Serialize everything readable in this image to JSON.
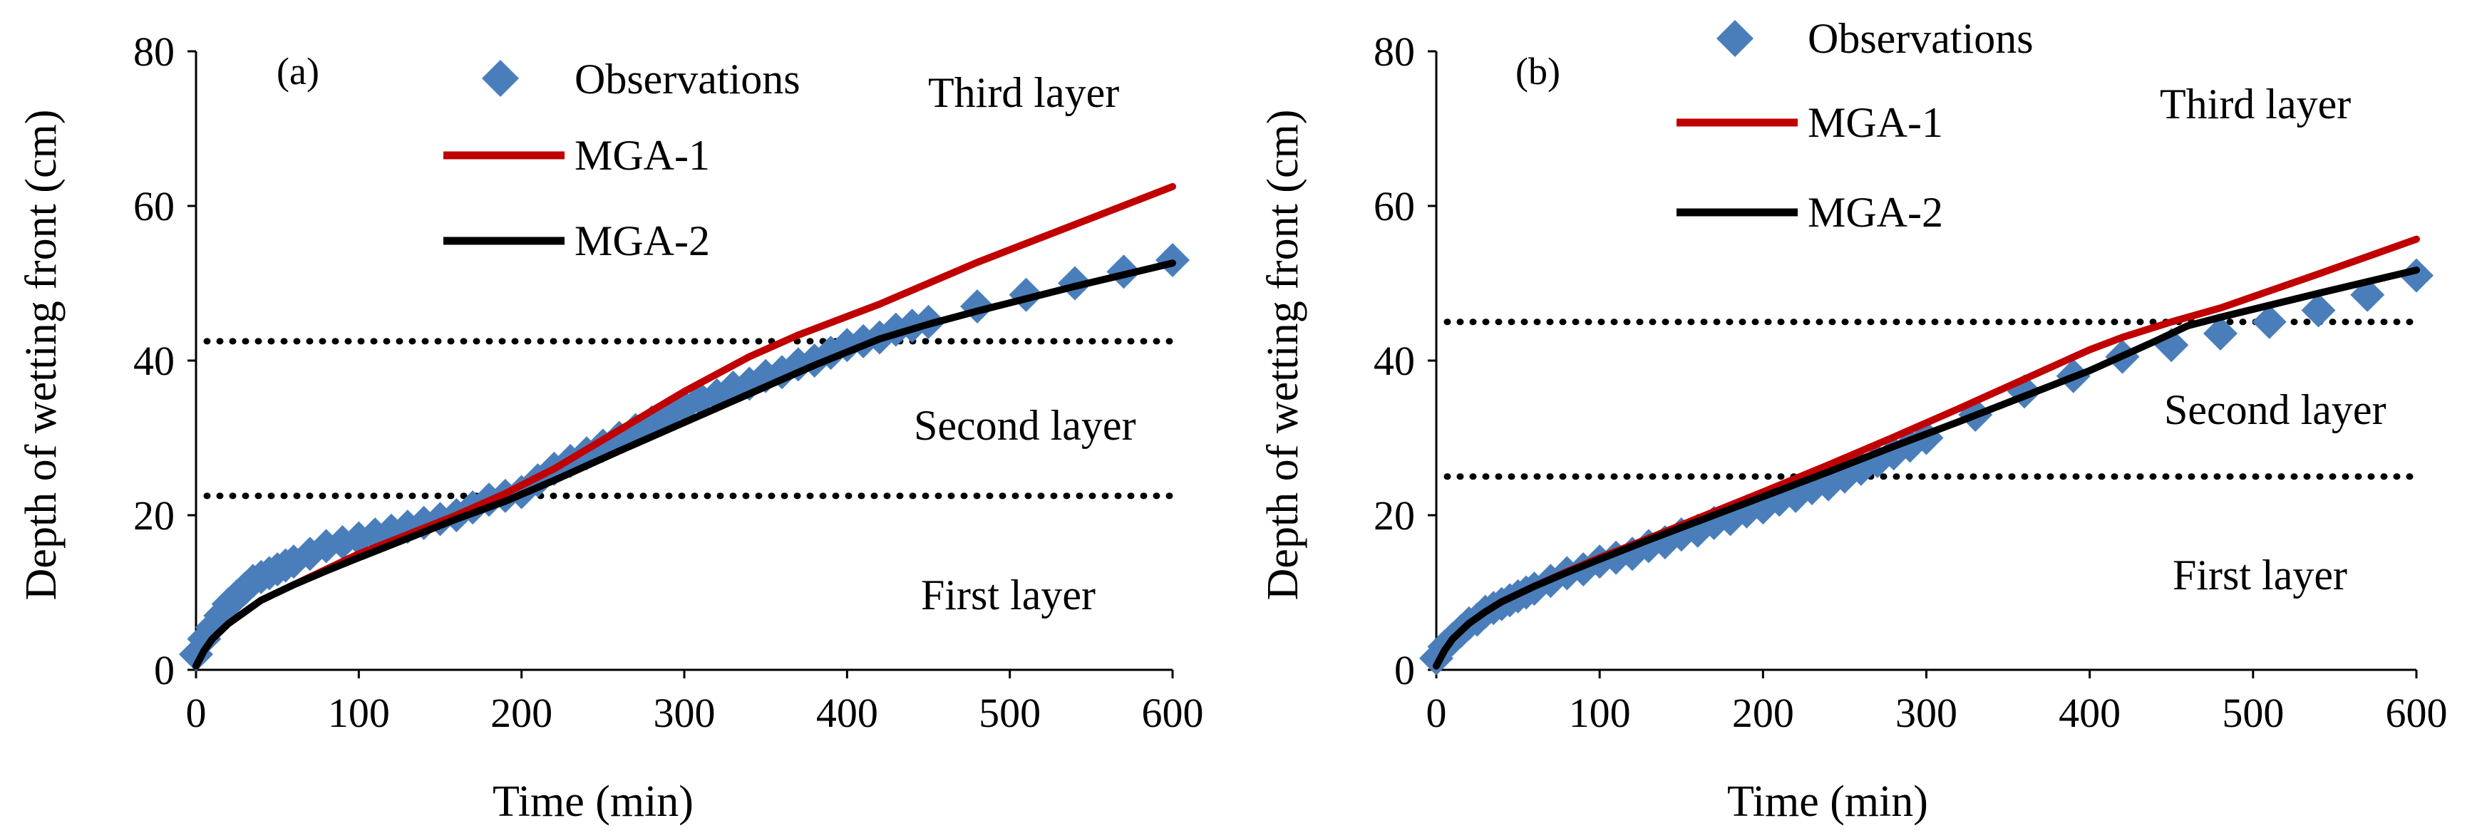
{
  "chart_data": [
    {
      "type": "line",
      "panel_label": "(a)",
      "xlabel": "Time (min)",
      "ylabel": "Depth of wetting front (cm)",
      "xlim": [
        0,
        600
      ],
      "ylim": [
        0,
        80
      ],
      "xticks": [
        0,
        100,
        200,
        300,
        400,
        500,
        600
      ],
      "yticks": [
        0,
        20,
        40,
        60,
        80
      ],
      "xtick_labels": [
        "0",
        "100",
        "200",
        "300",
        "400",
        "500",
        "600"
      ],
      "ytick_labels": [
        "0",
        "20",
        "40",
        "60",
        "80"
      ],
      "layer_boundaries": [
        22.5,
        42.5
      ],
      "layer_labels": [
        "First layer",
        "Second layer",
        "Third layer"
      ],
      "legend": [
        "Observations",
        "MGA-1",
        "MGA-2"
      ],
      "colors": {
        "observations": "#4a7ebb",
        "mga1": "#c00000",
        "mga2": "#000000"
      },
      "series": [
        {
          "name": "Observations",
          "style": "marker",
          "x": [
            0,
            5,
            10,
            15,
            20,
            25,
            30,
            35,
            40,
            45,
            50,
            55,
            60,
            70,
            80,
            90,
            100,
            110,
            120,
            130,
            140,
            150,
            160,
            170,
            180,
            190,
            200,
            210,
            220,
            230,
            240,
            250,
            260,
            270,
            280,
            290,
            300,
            310,
            320,
            330,
            340,
            350,
            360,
            370,
            380,
            390,
            400,
            410,
            420,
            430,
            440,
            450,
            480,
            510,
            540,
            570,
            600
          ],
          "y": [
            2,
            4,
            5.5,
            7,
            8.5,
            9.5,
            10.5,
            11.5,
            12,
            12.5,
            13,
            13.5,
            14,
            15,
            16,
            16.5,
            17,
            17.5,
            18,
            18.5,
            19,
            19.5,
            20,
            21,
            22,
            22.5,
            23,
            24.5,
            26,
            27,
            28,
            29,
            30,
            31,
            32,
            33,
            34,
            35,
            35.5,
            36.5,
            37,
            38,
            38.5,
            39.5,
            40,
            41,
            42,
            42.5,
            43,
            44,
            44.5,
            45,
            47,
            48.5,
            50,
            51.5,
            53
          ]
        },
        {
          "name": "MGA-1",
          "style": "line",
          "x": [
            0,
            5,
            10,
            20,
            30,
            40,
            60,
            80,
            100,
            130,
            160,
            190,
            220,
            260,
            300,
            340,
            370,
            420,
            480,
            540,
            600
          ],
          "y": [
            0.5,
            2.5,
            4,
            6,
            7.5,
            9,
            11,
            13,
            15,
            17.5,
            20,
            22.8,
            26,
            31,
            36,
            40.5,
            43.3,
            47.3,
            52.7,
            57.6,
            62.5
          ]
        },
        {
          "name": "MGA-2",
          "style": "line",
          "x": [
            0,
            5,
            10,
            20,
            30,
            40,
            60,
            80,
            100,
            130,
            160,
            190,
            220,
            260,
            300,
            340,
            380,
            420,
            450,
            480,
            540,
            600
          ],
          "y": [
            0.5,
            2.5,
            4,
            6,
            7.5,
            9,
            11,
            12.8,
            14.5,
            17,
            19.5,
            21.8,
            24.5,
            28.3,
            32,
            35.7,
            39.4,
            42.8,
            44.7,
            46.4,
            49.6,
            52.6
          ]
        }
      ]
    },
    {
      "type": "line",
      "panel_label": "(b)",
      "xlabel": "Time (min)",
      "ylabel": "Depth of wetting front (cm)",
      "xlim": [
        0,
        600
      ],
      "ylim": [
        0,
        80
      ],
      "xticks": [
        0,
        100,
        200,
        300,
        400,
        500,
        600
      ],
      "yticks": [
        0,
        20,
        40,
        60,
        80
      ],
      "xtick_labels": [
        "0",
        "100",
        "200",
        "300",
        "400",
        "500",
        "600"
      ],
      "ytick_labels": [
        "0",
        "20",
        "40",
        "60",
        "80"
      ],
      "layer_boundaries": [
        25,
        45
      ],
      "layer_labels": [
        "First layer",
        "Second layer",
        "Third layer"
      ],
      "legend": [
        "Observations",
        "MGA-1",
        "MGA-2"
      ],
      "colors": {
        "observations": "#4a7ebb",
        "mga1": "#c00000",
        "mga2": "#000000"
      },
      "series": [
        {
          "name": "Observations",
          "style": "marker",
          "x": [
            0,
            5,
            10,
            15,
            20,
            25,
            30,
            35,
            40,
            45,
            50,
            55,
            60,
            70,
            80,
            90,
            100,
            110,
            120,
            130,
            140,
            150,
            160,
            170,
            180,
            190,
            200,
            210,
            220,
            230,
            240,
            250,
            260,
            270,
            280,
            290,
            300,
            330,
            360,
            390,
            420,
            450,
            480,
            510,
            540,
            570,
            600
          ],
          "y": [
            1.5,
            3,
            4,
            5,
            6,
            6.5,
            7.5,
            8,
            8.5,
            9,
            9.5,
            10,
            10.5,
            11.5,
            12.5,
            13,
            14,
            14.5,
            15,
            16,
            16.5,
            17.5,
            18,
            19,
            19.5,
            20.5,
            21,
            22,
            22.5,
            23.5,
            24,
            25,
            26,
            27,
            28,
            29,
            30,
            33,
            36,
            38,
            40.5,
            42,
            43.5,
            45,
            46.5,
            48.5,
            51
          ]
        },
        {
          "name": "MGA-1",
          "style": "line",
          "x": [
            0,
            5,
            10,
            20,
            30,
            40,
            60,
            80,
            100,
            130,
            160,
            200,
            240,
            280,
            320,
            360,
            400,
            420,
            450,
            480,
            540,
            600
          ],
          "y": [
            0.5,
            2.5,
            4,
            6,
            7.5,
            8.8,
            10.8,
            12.7,
            14.5,
            17,
            19.6,
            23,
            26.5,
            30.1,
            33.8,
            37.6,
            41.4,
            43,
            45,
            46.8,
            51.2,
            55.7
          ]
        },
        {
          "name": "MGA-2",
          "style": "line",
          "x": [
            0,
            5,
            10,
            20,
            30,
            40,
            60,
            80,
            100,
            130,
            160,
            200,
            240,
            280,
            320,
            360,
            400,
            440,
            460,
            480,
            540,
            600
          ],
          "y": [
            0.5,
            2.5,
            4,
            6,
            7.5,
            8.8,
            10.8,
            12.6,
            14.3,
            16.8,
            19.2,
            22.4,
            25.6,
            28.9,
            32.1,
            35.4,
            38.7,
            42.5,
            44.5,
            45.6,
            48.7,
            51.7
          ]
        }
      ]
    }
  ]
}
